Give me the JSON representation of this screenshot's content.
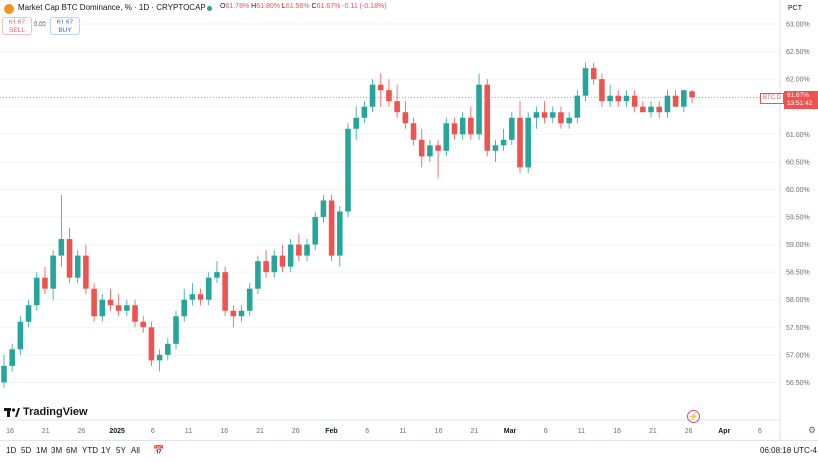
{
  "header": {
    "title": "Market Cap BTC Dominance, % · 1D · CRYPTOCAP",
    "ohlc": {
      "o_label": "O",
      "o": "61.78%",
      "h_label": "H",
      "h": "61.80%",
      "l_label": "L",
      "l": "61.56%",
      "c_label": "C",
      "c": "61.67%",
      "change": "-0.11 (-0.18%)"
    },
    "sell_price": "61.67",
    "sell_label": "SELL",
    "buy_price": "61.67",
    "buy_label": "BUY",
    "spread": "0.00"
  },
  "price_axis": {
    "unit_label": "PCT",
    "current_symbol": "BTC.D",
    "current_price": "61.67%",
    "countdown": "13:51:42"
  },
  "brand": {
    "name": "TradingView"
  },
  "toolbar": {
    "timeframes": [
      "1D",
      "5D",
      "1M",
      "3M",
      "6M",
      "YTD",
      "1Y",
      "5Y",
      "All"
    ],
    "clock": "06:08:18 UTC-4"
  },
  "colors": {
    "up": "#26a69a",
    "down": "#ef5350",
    "grid": "#f0f3fa",
    "axis_text": "#6a6d78"
  },
  "chart_data": {
    "type": "candlestick",
    "title": "Market Cap BTC Dominance, %",
    "ylim": [
      56.0,
      63.0
    ],
    "y_ticks": [
      "56.50%",
      "57.00%",
      "57.50%",
      "58.00%",
      "58.50%",
      "59.00%",
      "59.50%",
      "60.00%",
      "60.50%",
      "61.00%",
      "61.50%",
      "62.00%",
      "62.50%",
      "63.00%"
    ],
    "x_ticks": [
      "16",
      "21",
      "26",
      "2025",
      "6",
      "11",
      "16",
      "21",
      "26",
      "Feb",
      "6",
      "11",
      "16",
      "21",
      "Mar",
      "6",
      "11",
      "16",
      "21",
      "26",
      "Apr",
      "6"
    ],
    "candles": [
      [
        56.5,
        57.0,
        56.4,
        56.8
      ],
      [
        56.8,
        57.2,
        56.7,
        57.1
      ],
      [
        57.1,
        57.7,
        57.0,
        57.6
      ],
      [
        57.6,
        58.0,
        57.5,
        57.9
      ],
      [
        57.9,
        58.5,
        57.8,
        58.4
      ],
      [
        58.4,
        58.6,
        58.1,
        58.2
      ],
      [
        58.2,
        58.9,
        58.0,
        58.8
      ],
      [
        58.8,
        59.9,
        58.6,
        59.1
      ],
      [
        59.1,
        59.3,
        58.3,
        58.4
      ],
      [
        58.4,
        58.9,
        58.3,
        58.8
      ],
      [
        58.8,
        59.0,
        58.1,
        58.2
      ],
      [
        58.2,
        58.3,
        57.6,
        57.7
      ],
      [
        57.7,
        58.1,
        57.6,
        58.0
      ],
      [
        58.0,
        58.2,
        57.8,
        57.9
      ],
      [
        57.9,
        58.1,
        57.7,
        57.8
      ],
      [
        57.8,
        58.0,
        57.7,
        57.9
      ],
      [
        57.9,
        58.0,
        57.5,
        57.6
      ],
      [
        57.6,
        57.7,
        57.4,
        57.5
      ],
      [
        57.5,
        57.6,
        56.8,
        56.9
      ],
      [
        56.9,
        57.1,
        56.7,
        57.0
      ],
      [
        57.0,
        57.3,
        56.9,
        57.2
      ],
      [
        57.2,
        57.8,
        57.1,
        57.7
      ],
      [
        57.7,
        58.2,
        57.6,
        58.0
      ],
      [
        58.0,
        58.3,
        57.9,
        58.1
      ],
      [
        58.1,
        58.2,
        57.9,
        58.0
      ],
      [
        58.0,
        58.5,
        57.9,
        58.4
      ],
      [
        58.4,
        58.7,
        58.3,
        58.5
      ],
      [
        58.5,
        58.6,
        57.7,
        57.8
      ],
      [
        57.8,
        57.9,
        57.5,
        57.7
      ],
      [
        57.7,
        57.9,
        57.6,
        57.8
      ],
      [
        57.8,
        58.3,
        57.7,
        58.2
      ],
      [
        58.2,
        58.8,
        58.1,
        58.7
      ],
      [
        58.7,
        58.9,
        58.4,
        58.5
      ],
      [
        58.5,
        58.9,
        58.4,
        58.8
      ],
      [
        58.8,
        59.0,
        58.5,
        58.6
      ],
      [
        58.6,
        59.1,
        58.5,
        59.0
      ],
      [
        59.0,
        59.2,
        58.7,
        58.8
      ],
      [
        58.8,
        59.1,
        58.7,
        59.0
      ],
      [
        59.0,
        59.6,
        58.9,
        59.5
      ],
      [
        59.5,
        59.9,
        59.4,
        59.8
      ],
      [
        59.8,
        59.9,
        58.7,
        58.8
      ],
      [
        58.8,
        59.7,
        58.6,
        59.6
      ],
      [
        59.6,
        61.2,
        59.5,
        61.1
      ],
      [
        61.1,
        61.5,
        60.9,
        61.3
      ],
      [
        61.3,
        61.6,
        61.2,
        61.5
      ],
      [
        61.5,
        62.0,
        61.4,
        61.9
      ],
      [
        61.9,
        62.1,
        61.5,
        61.8
      ],
      [
        61.8,
        62.0,
        61.5,
        61.6
      ],
      [
        61.6,
        61.9,
        61.3,
        61.4
      ],
      [
        61.4,
        61.6,
        61.1,
        61.2
      ],
      [
        61.2,
        61.3,
        60.8,
        60.9
      ],
      [
        60.9,
        61.1,
        60.4,
        60.6
      ],
      [
        60.6,
        60.9,
        60.5,
        60.8
      ],
      [
        60.8,
        60.9,
        60.2,
        60.7
      ],
      [
        60.7,
        61.3,
        60.6,
        61.2
      ],
      [
        61.2,
        61.3,
        60.9,
        61.0
      ],
      [
        61.0,
        61.4,
        60.9,
        61.3
      ],
      [
        61.3,
        61.5,
        60.9,
        61.0
      ],
      [
        61.0,
        62.1,
        60.9,
        61.9
      ],
      [
        61.9,
        62.0,
        60.6,
        60.7
      ],
      [
        60.7,
        60.9,
        60.5,
        60.8
      ],
      [
        60.8,
        61.1,
        60.7,
        60.9
      ],
      [
        60.9,
        61.4,
        60.8,
        61.3
      ],
      [
        61.3,
        61.6,
        60.3,
        60.4
      ],
      [
        60.4,
        61.4,
        60.3,
        61.3
      ],
      [
        61.3,
        61.5,
        61.1,
        61.4
      ],
      [
        61.4,
        61.6,
        61.2,
        61.3
      ],
      [
        61.3,
        61.5,
        61.2,
        61.4
      ],
      [
        61.4,
        61.5,
        61.1,
        61.2
      ],
      [
        61.2,
        61.4,
        61.1,
        61.3
      ],
      [
        61.3,
        61.8,
        61.2,
        61.7
      ],
      [
        61.7,
        62.3,
        61.6,
        62.2
      ],
      [
        62.2,
        62.3,
        61.9,
        62.0
      ],
      [
        62.0,
        62.1,
        61.5,
        61.6
      ],
      [
        61.6,
        61.9,
        61.5,
        61.7
      ],
      [
        61.7,
        61.8,
        61.5,
        61.6
      ],
      [
        61.6,
        61.8,
        61.5,
        61.7
      ],
      [
        61.7,
        61.8,
        61.4,
        61.5
      ],
      [
        61.5,
        61.6,
        61.4,
        61.4
      ],
      [
        61.4,
        61.6,
        61.3,
        61.5
      ],
      [
        61.5,
        61.6,
        61.3,
        61.4
      ],
      [
        61.4,
        61.8,
        61.3,
        61.7
      ],
      [
        61.7,
        61.8,
        61.5,
        61.5
      ],
      [
        61.5,
        61.8,
        61.4,
        61.8
      ],
      [
        61.78,
        61.8,
        61.56,
        61.67
      ]
    ]
  }
}
